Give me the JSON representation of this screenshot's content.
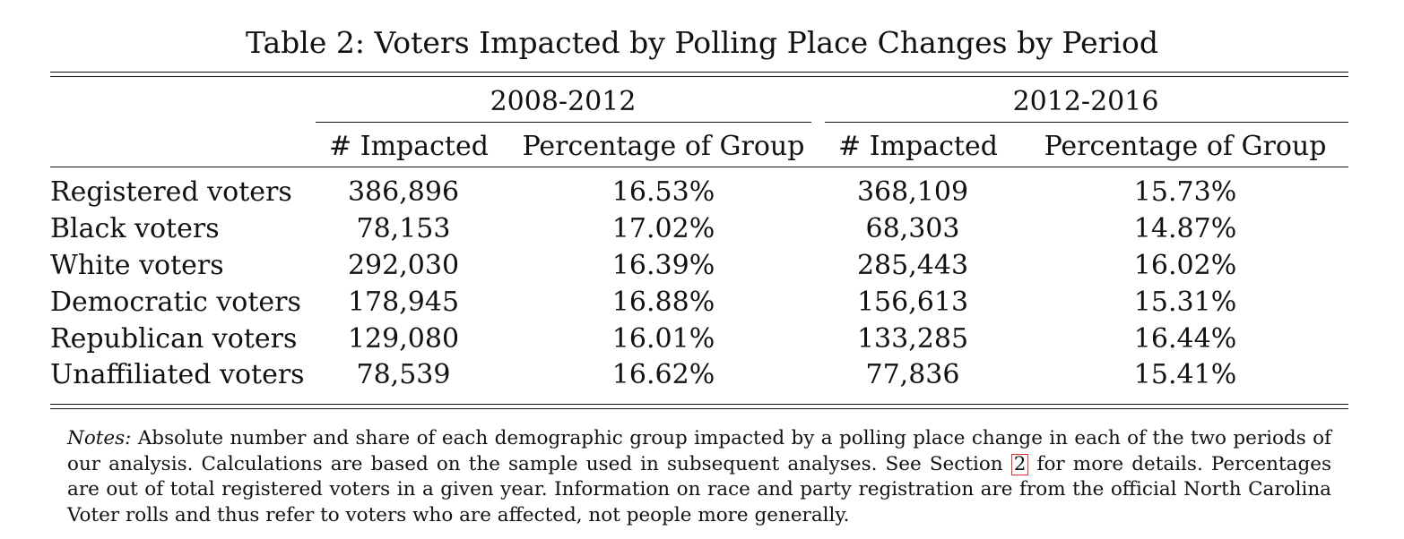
{
  "table": {
    "caption": "Table 2: Voters Impacted by Polling Place Changes by Period",
    "periods": [
      "2008-2012",
      "2012-2016"
    ],
    "subheaders": [
      "# Impacted",
      "Percentage of Group",
      "# Impacted",
      "Percentage of Group"
    ],
    "rows": [
      {
        "label": "Registered voters",
        "values": [
          "386,896",
          "16.53%",
          "368,109",
          "15.73%"
        ]
      },
      {
        "label": "Black voters",
        "values": [
          "78,153",
          "17.02%",
          "68,303",
          "14.87%"
        ]
      },
      {
        "label": "White voters",
        "values": [
          "292,030",
          "16.39%",
          "285,443",
          "16.02%"
        ]
      },
      {
        "label": "Democratic voters",
        "values": [
          "178,945",
          "16.88%",
          "156,613",
          "15.31%"
        ]
      },
      {
        "label": "Republican voters",
        "values": [
          "129,080",
          "16.01%",
          "133,285",
          "16.44%"
        ]
      },
      {
        "label": "Unaffiliated voters",
        "values": [
          "78,539",
          "16.62%",
          "77,836",
          "15.41%"
        ]
      }
    ]
  },
  "notes": {
    "label": "Notes:",
    "text_before_ref": "Absolute number and share of each demographic group impacted by a polling place change in each of the two periods of our analysis. Calculations are based on the sample used in subsequent analyses. See Section",
    "ref": "2",
    "text_after_ref": "for more details. Percentages are out of total registered voters in a given year. Information on race and party registration are from the official North Carolina Voter rolls and thus refer to voters who are affected, not people more generally."
  }
}
